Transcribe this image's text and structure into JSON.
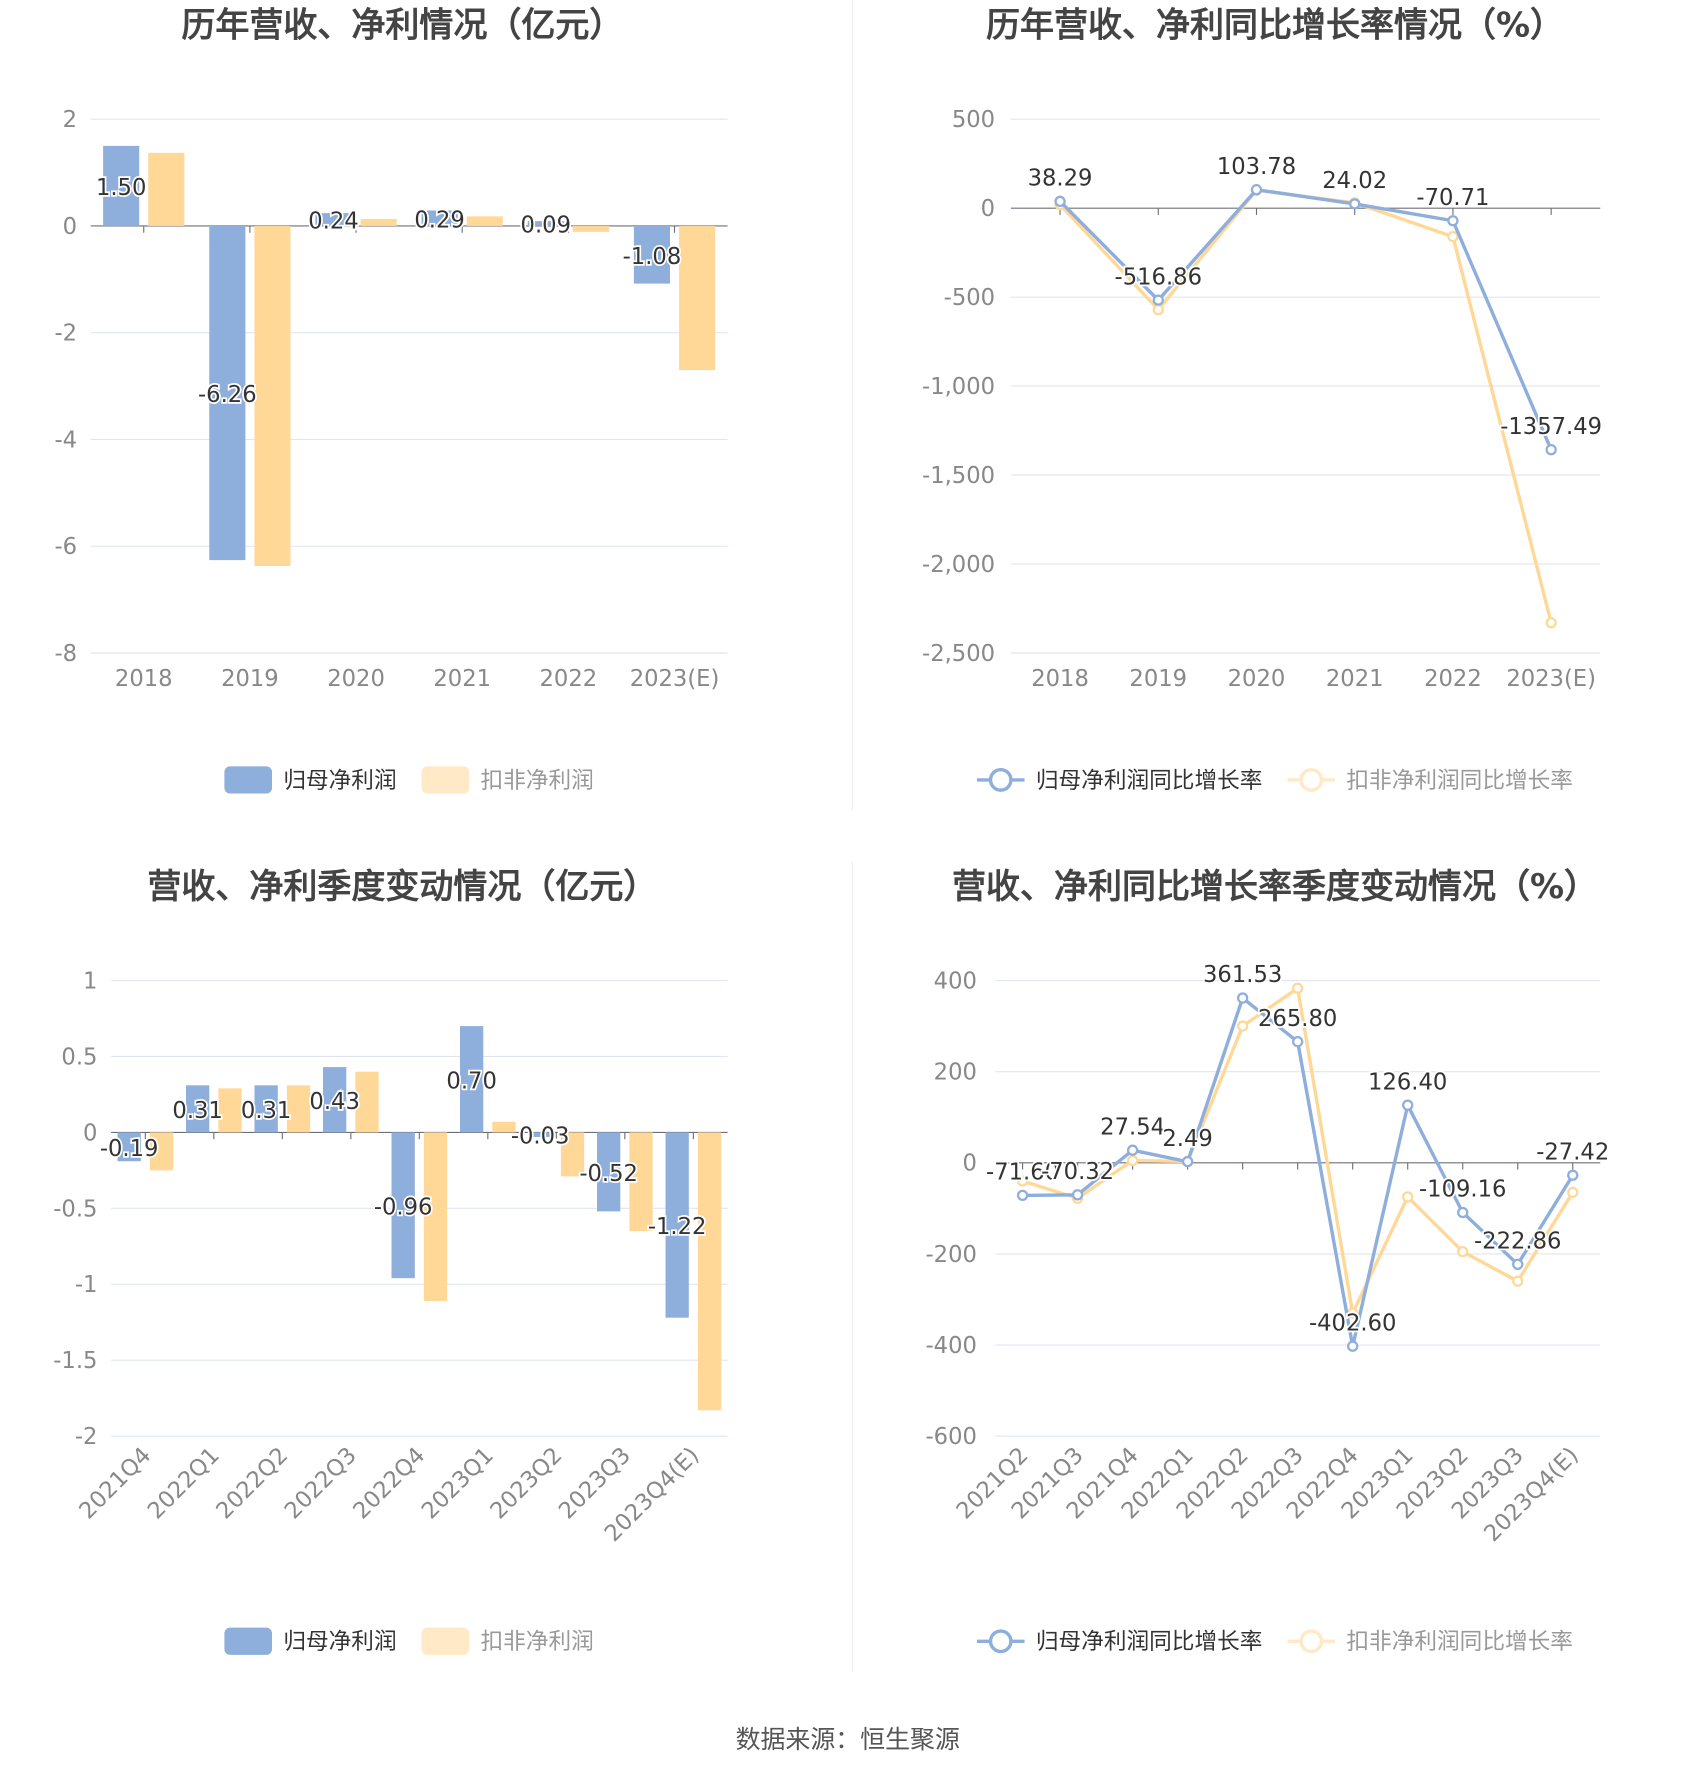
{
  "colors": {
    "blue": "#8eaedb",
    "orange": "#ffd898",
    "legend_orange": "#ffe9c6",
    "grid": "#e0e6f1",
    "axis": "#6e7079"
  },
  "source": "数据来源：恒生聚源",
  "chart_data": [
    {
      "type": "bar",
      "title": "历年营收、净利情况（亿元）",
      "categories": [
        "2018",
        "2019",
        "2020",
        "2021",
        "2022",
        "2023(E)"
      ],
      "yticks": [
        "2",
        "0",
        "-2",
        "-4",
        "-6",
        "-8"
      ],
      "ylim": [
        -8,
        2
      ],
      "series": [
        {
          "name": "归母净利润",
          "values": [
            1.5,
            -6.26,
            0.24,
            0.29,
            0.09,
            -1.08
          ],
          "labels": [
            "1.50",
            "-6.26",
            "0.24",
            "0.29",
            "0.09",
            "-1.08"
          ]
        },
        {
          "name": "扣非净利润",
          "values": [
            1.37,
            -6.37,
            0.13,
            0.18,
            -0.11,
            -2.7
          ]
        }
      ],
      "legend": "bottom"
    },
    {
      "type": "line",
      "title": "历年营收、净利同比增长率情况（%）",
      "categories": [
        "2018",
        "2019",
        "2020",
        "2021",
        "2022",
        "2023(E)"
      ],
      "yticks": [
        "500",
        "0",
        "-500",
        "-1,000",
        "-1,500",
        "-2,000",
        "-2,500"
      ],
      "ylim": [
        -2500,
        500
      ],
      "series": [
        {
          "name": "归母净利润同比增长率",
          "values": [
            38.29,
            -516.86,
            103.78,
            24.02,
            -70.71,
            -1357.49
          ],
          "labels": [
            "38.29",
            "-516.86",
            "103.78",
            "24.02",
            "-70.71",
            "-1357.49"
          ]
        },
        {
          "name": "扣非净利润同比增长率",
          "values": [
            20,
            -570,
            100,
            30,
            -160,
            -2330
          ]
        }
      ],
      "legend": "bottom"
    },
    {
      "type": "bar",
      "title": "营收、净利季度变动情况（亿元）",
      "categories": [
        "2021Q4",
        "2022Q1",
        "2022Q2",
        "2022Q3",
        "2022Q4",
        "2023Q1",
        "2023Q2",
        "2023Q3",
        "2023Q4(E)"
      ],
      "yticks": [
        "1",
        "0.5",
        "0",
        "-0.5",
        "-1",
        "-1.5",
        "-2"
      ],
      "ylim": [
        -2,
        1
      ],
      "series": [
        {
          "name": "归母净利润",
          "values": [
            -0.19,
            0.31,
            0.31,
            0.43,
            -0.96,
            0.7,
            -0.03,
            -0.52,
            -1.22
          ],
          "labels": [
            "-0.19",
            "0.31",
            "0.31",
            "0.43",
            "-0.96",
            "0.70",
            "-0.03",
            "-0.52",
            "-1.22"
          ]
        },
        {
          "name": "扣非净利润",
          "values": [
            -0.25,
            0.29,
            0.31,
            0.4,
            -1.11,
            0.07,
            -0.29,
            -0.65,
            -1.83
          ]
        }
      ],
      "legend": "bottom"
    },
    {
      "type": "line",
      "title": "营收、净利同比增长率季度变动情况（%）",
      "categories": [
        "2021Q2",
        "2021Q3",
        "2021Q4",
        "2022Q1",
        "2022Q2",
        "2022Q3",
        "2022Q4",
        "2023Q1",
        "2023Q2",
        "2023Q3",
        "2023Q4(E)"
      ],
      "yticks": [
        "400",
        "200",
        "0",
        "-200",
        "-400",
        "-600"
      ],
      "ylim": [
        -600,
        400
      ],
      "series": [
        {
          "name": "归母净利润同比增长率",
          "values": [
            -71.6,
            -70.32,
            27.54,
            2.49,
            361.53,
            265.8,
            -402.6,
            126.4,
            -109.16,
            -222.86,
            -27.42
          ],
          "labels": [
            "-71.60",
            "-70.32",
            "27.54",
            "2.49",
            "361.53",
            "265.80",
            "-402.60",
            "126.40",
            "-109.16",
            "-222.86",
            "-27.42"
          ]
        },
        {
          "name": "扣非净利润同比增长率",
          "values": [
            -40,
            -78,
            5,
            3,
            300,
            383,
            -330,
            -75,
            -195,
            -260,
            -65
          ]
        }
      ],
      "legend": "bottom"
    }
  ]
}
